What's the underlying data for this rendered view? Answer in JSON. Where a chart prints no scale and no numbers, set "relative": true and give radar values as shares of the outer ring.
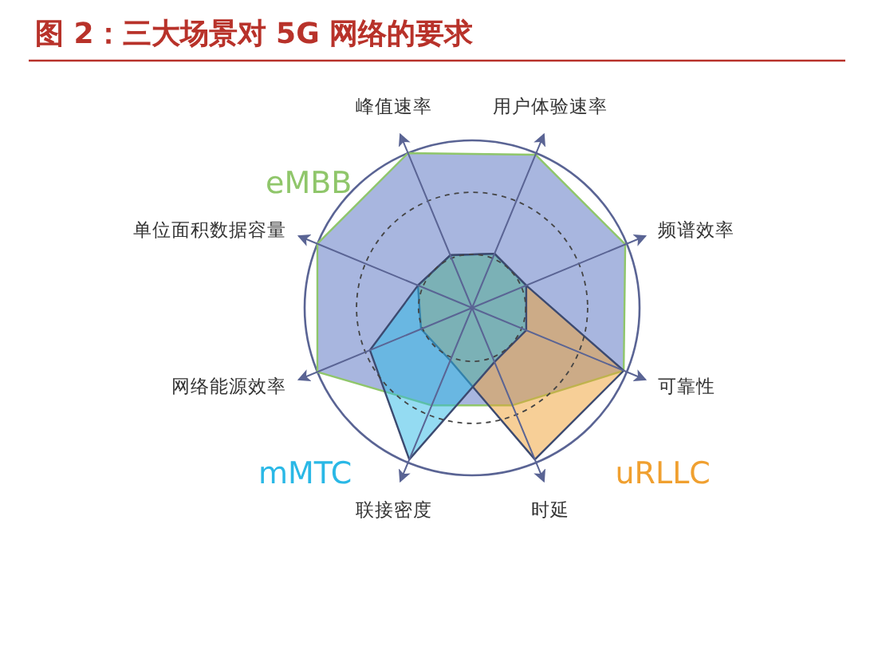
{
  "chart_data": {
    "type": "radar",
    "title": "图 2：三大场景对 5G 网络的要求",
    "relative": true,
    "grid": true,
    "categories": [
      "用户体验速率",
      "频谱效率",
      "可靠性",
      "时延",
      "联接密度",
      "网络能源效率",
      "单位面积数据容量",
      "峰值速率"
    ],
    "series": [
      {
        "name": "eMBB",
        "color": "#8fc66a",
        "values": [
          0.99,
          0.99,
          0.98,
          0.63,
          0.63,
          1.0,
          1.0,
          1.0
        ]
      },
      {
        "name": "uRLLC",
        "color": "#f0a030",
        "values": [
          0.35,
          0.35,
          0.98,
          0.98,
          0.34,
          0.33,
          0.35,
          0.34
        ]
      },
      {
        "name": "mMTC",
        "color": "#2ab8e6",
        "values": [
          0.35,
          0.35,
          0.35,
          0.35,
          0.98,
          0.66,
          0.35,
          0.34
        ]
      }
    ]
  }
}
